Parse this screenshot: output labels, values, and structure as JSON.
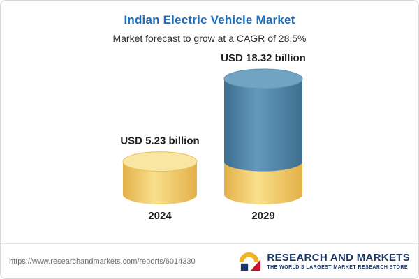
{
  "chart_data": {
    "type": "bar",
    "variant": "3d-cylinder",
    "title": "Indian Electric Vehicle Market",
    "subtitle": "Market forecast to grow at a CAGR of 28.5%",
    "cagr_percent": 28.5,
    "unit": "USD billion",
    "categories": [
      "2024",
      "2029"
    ],
    "values": [
      5.23,
      18.32
    ],
    "value_labels": [
      "USD 5.23 billion",
      "USD 18.32 billion"
    ],
    "ylim": [
      0,
      20
    ],
    "grid": false,
    "legend": "none",
    "colors": {
      "gold_body_edge": "#e3b049",
      "gold_body_center": "#f9e08c",
      "gold_top": "#f9e6a3",
      "gold_top_stroke": "#e8c25b",
      "blue_body_edge": "#3e6e90",
      "blue_body_center": "#6499bc",
      "blue_top": "#71a3c2",
      "blue_top_stroke": "#5e92b2",
      "label_text": "#1f1f1f"
    }
  },
  "footer": {
    "url": "https://www.researchandmarkets.com/reports/6014330",
    "logo_text": "RESEARCH AND MARKETS",
    "logo_tagline": "THE WORLD'S LARGEST MARKET RESEARCH STORE"
  },
  "theme": {
    "title_color": "#1b6fc0",
    "navy": "#1b3664",
    "gold": "#f0b429",
    "red": "#c8102e"
  }
}
